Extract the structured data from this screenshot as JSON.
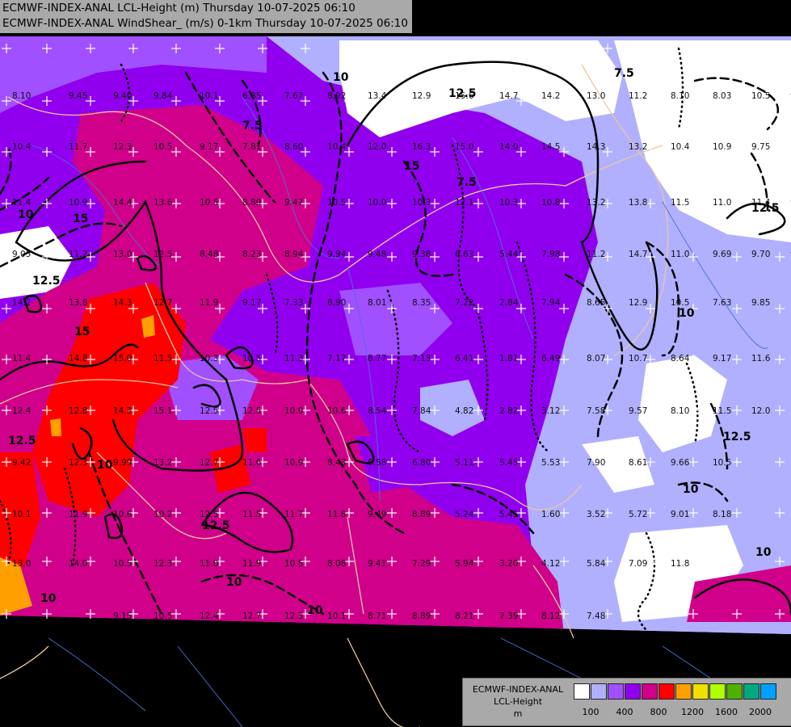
{
  "header": {
    "line1": "ECMWF-INDEX-ANAL LCL-Height (m) Thursday 10-07-2025 06:10",
    "line2": "ECMWF-INDEX-ANAL WindShear_ (m/s) 0-1km Thursday 10-07-2025 06:10"
  },
  "legend": {
    "line1": "ECMWF-INDEX-ANAL",
    "line2": "LCL-Height",
    "line3": "m",
    "colors": [
      "#ffffff",
      "#b0b0ff",
      "#a050ff",
      "#9000ee",
      "#d0008a",
      "#ff0000",
      "#ffa000",
      "#f0e000",
      "#b0ff00",
      "#50b000",
      "#00a880",
      "#00a0ff"
    ],
    "ticks": [
      "100",
      "400",
      "800",
      "1200",
      "1600",
      "2000"
    ]
  },
  "map": {
    "contour_labels": [
      {
        "text": "12.5"
      },
      {
        "text": "15"
      },
      {
        "text": "10"
      },
      {
        "text": "7.5"
      },
      {
        "text": "15"
      },
      {
        "text": "10"
      },
      {
        "text": "12.5"
      },
      {
        "text": "15"
      },
      {
        "text": "12.5"
      },
      {
        "text": "10"
      },
      {
        "text": "12.5"
      },
      {
        "text": "10"
      },
      {
        "text": "12.5"
      },
      {
        "text": "10"
      },
      {
        "text": "7.5"
      },
      {
        "text": "10"
      },
      {
        "text": "7.5"
      },
      {
        "text": "10"
      },
      {
        "text": "12.5"
      },
      {
        "text": "10"
      },
      {
        "text": "10"
      }
    ],
    "station_values": [
      {
        "v": "8.10"
      },
      {
        "v": "9.45"
      },
      {
        "v": "9.40"
      },
      {
        "v": "9.84"
      },
      {
        "v": "10.1"
      },
      {
        "v": "6.85"
      },
      {
        "v": "7.67"
      },
      {
        "v": "8.92"
      },
      {
        "v": "13.4"
      },
      {
        "v": "12.9"
      },
      {
        "v": "15.6"
      },
      {
        "v": "14.7"
      },
      {
        "v": "14.2"
      },
      {
        "v": "13.0"
      },
      {
        "v": "11.2"
      },
      {
        "v": "8.10"
      },
      {
        "v": "8.03"
      },
      {
        "v": "10.5"
      },
      {
        "v": "9.80"
      },
      {
        "v": "10.4"
      },
      {
        "v": "11.7"
      },
      {
        "v": "12.3"
      },
      {
        "v": "10.5"
      },
      {
        "v": "9.17"
      },
      {
        "v": "7.81"
      },
      {
        "v": "8.60"
      },
      {
        "v": "10.4"
      },
      {
        "v": "12.0"
      },
      {
        "v": "16.3"
      },
      {
        "v": "15.0"
      },
      {
        "v": "14.0"
      },
      {
        "v": "14.5"
      },
      {
        "v": "14.3"
      },
      {
        "v": "13.2"
      },
      {
        "v": "10.4"
      },
      {
        "v": "10.9"
      },
      {
        "v": "9.75"
      },
      {
        "v": "10.1"
      },
      {
        "v": "11.4"
      },
      {
        "v": "10.9"
      },
      {
        "v": "14.4"
      },
      {
        "v": "13.6"
      },
      {
        "v": "10.5"
      },
      {
        "v": "8.89"
      },
      {
        "v": "9.47"
      },
      {
        "v": "10.5"
      },
      {
        "v": "10.0"
      },
      {
        "v": "10.3"
      },
      {
        "v": "12.1"
      },
      {
        "v": "10.3"
      },
      {
        "v": "10.8"
      },
      {
        "v": "13.2"
      },
      {
        "v": "13.8"
      },
      {
        "v": "11.5"
      },
      {
        "v": "11.0"
      },
      {
        "v": "11.4"
      },
      {
        "v": "9.6"
      },
      {
        "v": "9.05"
      },
      {
        "v": "11.2"
      },
      {
        "v": "13.0"
      },
      {
        "v": "12.5"
      },
      {
        "v": "8.48"
      },
      {
        "v": "8.23"
      },
      {
        "v": "8.94"
      },
      {
        "v": "9.94"
      },
      {
        "v": "9.48"
      },
      {
        "v": "9.38"
      },
      {
        "v": "6.63"
      },
      {
        "v": "5.44"
      },
      {
        "v": "7.98"
      },
      {
        "v": "11.2"
      },
      {
        "v": "14.7"
      },
      {
        "v": "11.0"
      },
      {
        "v": "9.69"
      },
      {
        "v": "9.70"
      },
      {
        "v": "9.2"
      },
      {
        "v": "14.2"
      },
      {
        "v": "13.8"
      },
      {
        "v": "14.3"
      },
      {
        "v": "12.7"
      },
      {
        "v": "11.9"
      },
      {
        "v": "9.17"
      },
      {
        "v": "7.33"
      },
      {
        "v": "8.90"
      },
      {
        "v": "8.01"
      },
      {
        "v": "8.35"
      },
      {
        "v": "7.22"
      },
      {
        "v": "2.84"
      },
      {
        "v": "7.94"
      },
      {
        "v": "8.65"
      },
      {
        "v": "12.9"
      },
      {
        "v": "10.5"
      },
      {
        "v": "7.63"
      },
      {
        "v": "9.85"
      },
      {
        "v": "11.4"
      },
      {
        "v": "14.8"
      },
      {
        "v": "15.0"
      },
      {
        "v": "11.5"
      },
      {
        "v": "10.3"
      },
      {
        "v": "10.5"
      },
      {
        "v": "11.3"
      },
      {
        "v": "7.17"
      },
      {
        "v": "8.77"
      },
      {
        "v": "7.13"
      },
      {
        "v": "6.41"
      },
      {
        "v": "1.81"
      },
      {
        "v": "6.49"
      },
      {
        "v": "8.07"
      },
      {
        "v": "10.7"
      },
      {
        "v": "8.64"
      },
      {
        "v": "9.17"
      },
      {
        "v": "11.6"
      },
      {
        "v": "12.4"
      },
      {
        "v": "12.8"
      },
      {
        "v": "14.3"
      },
      {
        "v": "15.1"
      },
      {
        "v": "12.5"
      },
      {
        "v": "12.5"
      },
      {
        "v": "10.9"
      },
      {
        "v": "10.6"
      },
      {
        "v": "8.54"
      },
      {
        "v": "7.84"
      },
      {
        "v": "4.82"
      },
      {
        "v": "2.82"
      },
      {
        "v": "3.12"
      },
      {
        "v": "7.58"
      },
      {
        "v": "9.57"
      },
      {
        "v": "8.10"
      },
      {
        "v": "11.5"
      },
      {
        "v": "12.0"
      },
      {
        "v": "9.42"
      },
      {
        "v": "12.3"
      },
      {
        "v": "9.99"
      },
      {
        "v": "13.2"
      },
      {
        "v": "12.7"
      },
      {
        "v": "11.6"
      },
      {
        "v": "10.9"
      },
      {
        "v": "8.43"
      },
      {
        "v": "8.58"
      },
      {
        "v": "6.80"
      },
      {
        "v": "5.11"
      },
      {
        "v": "5.45"
      },
      {
        "v": "5.53"
      },
      {
        "v": "7.90"
      },
      {
        "v": "8.61"
      },
      {
        "v": "9.66"
      },
      {
        "v": "10.5"
      },
      {
        "v": "10.1"
      },
      {
        "v": "11.9"
      },
      {
        "v": "10.6"
      },
      {
        "v": "10.2"
      },
      {
        "v": "12.5"
      },
      {
        "v": "11.5"
      },
      {
        "v": "11.7"
      },
      {
        "v": "11.8"
      },
      {
        "v": "9.49"
      },
      {
        "v": "8.89"
      },
      {
        "v": "5.24"
      },
      {
        "v": "5.45"
      },
      {
        "v": "1.60"
      },
      {
        "v": "3.52"
      },
      {
        "v": "5.72"
      },
      {
        "v": "9.01"
      },
      {
        "v": "8.18"
      },
      {
        "v": "13.0"
      },
      {
        "v": "14.0"
      },
      {
        "v": "10.5"
      },
      {
        "v": "12.3"
      },
      {
        "v": "11.0"
      },
      {
        "v": "11.9"
      },
      {
        "v": "10.5"
      },
      {
        "v": "8.08"
      },
      {
        "v": "9.41"
      },
      {
        "v": "7.29"
      },
      {
        "v": "5.94"
      },
      {
        "v": "3.20"
      },
      {
        "v": "4.12"
      },
      {
        "v": "5.84"
      },
      {
        "v": "7.09"
      },
      {
        "v": "11.8"
      },
      {
        "v": "9.15"
      },
      {
        "v": "10.5"
      },
      {
        "v": "12.4"
      },
      {
        "v": "12.7"
      },
      {
        "v": "12.3"
      },
      {
        "v": "10.1"
      },
      {
        "v": "8.71"
      },
      {
        "v": "8.89"
      },
      {
        "v": "8.21"
      },
      {
        "v": "7.39"
      },
      {
        "v": "8.12"
      },
      {
        "v": "7.48"
      }
    ]
  }
}
